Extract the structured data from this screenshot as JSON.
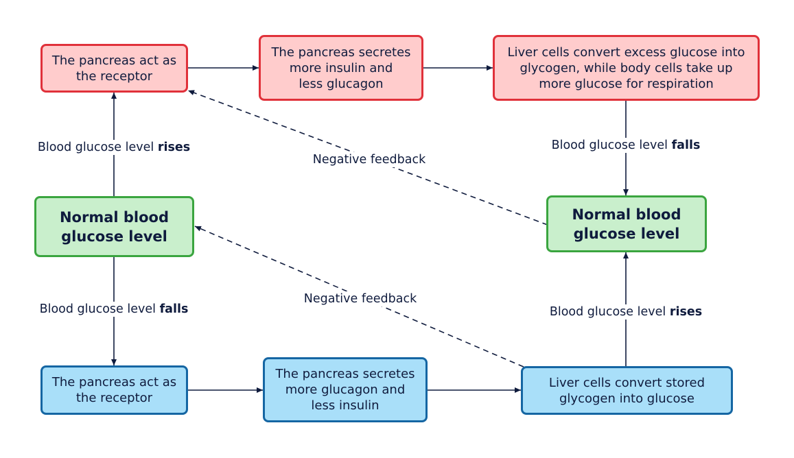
{
  "colors": {
    "red_fill": "#ffcccc",
    "red_border": "#e0313a",
    "blue_fill": "#a9dff9",
    "blue_border": "#1566a3",
    "green_fill": "#c9efcc",
    "green_border": "#3aa53f",
    "line": "#0f1b3d"
  },
  "top_row": {
    "receptor": "The pancreas act as\nthe receptor",
    "secretes": "The pancreas secretes\nmore insulin and\nless glucagon",
    "liver": "Liver cells convert excess glucose into\nglycogen, while body cells take up\nmore glucose for respiration"
  },
  "bottom_row": {
    "receptor": "The pancreas act as\nthe receptor",
    "secretes": "The pancreas secretes\nmore glucagon and\nless insulin",
    "liver": "Liver cells convert stored\nglycogen into glucose"
  },
  "normal_left": "Normal blood\nglucose level",
  "normal_right": "Normal blood\nglucose level",
  "labels": {
    "left_up_prefix": "Blood glucose level ",
    "left_up_bold": "rises",
    "left_down_prefix": "Blood glucose level ",
    "left_down_bold": "falls",
    "right_down_prefix": "Blood glucose level ",
    "right_down_bold": "falls",
    "right_up_prefix": "Blood glucose level ",
    "right_up_bold": "rises",
    "feedback_top": "Negative feedback",
    "feedback_bottom": "Negative feedback"
  }
}
